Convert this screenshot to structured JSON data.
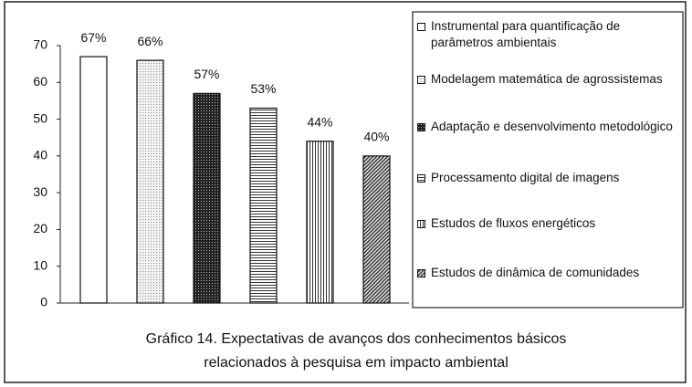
{
  "chart_data": {
    "type": "bar",
    "categories": [
      "Instrumental para quantificação de parâmetros ambientais",
      "Modelagem matemática de agrossistemas",
      "Adaptação e desenvolvimento metodológico",
      "Processamento digital de imagens",
      "Estudos de fluxos energéticos",
      "Estudos de dinâmica de comunidades"
    ],
    "values": [
      67,
      66,
      57,
      53,
      44,
      40
    ],
    "value_labels": [
      "67%",
      "66%",
      "57%",
      "53%",
      "44%",
      "40%"
    ],
    "ylim": [
      0,
      70
    ],
    "yticks": [
      0,
      10,
      20,
      30,
      40,
      50,
      60,
      70
    ],
    "caption": [
      "Gráfico 14. Expectativas de avanços dos conhecimentos básicos",
      "relacionados à pesquisa em impacto ambiental"
    ]
  }
}
